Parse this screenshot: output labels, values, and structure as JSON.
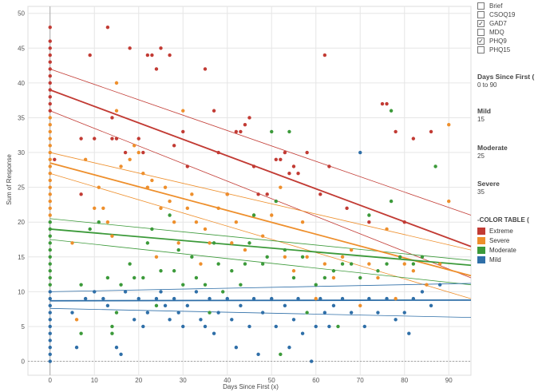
{
  "chart_data": {
    "type": "scatter",
    "title": "",
    "xlabel": "Days Since First (x)",
    "ylabel": "Sum of Response",
    "xlim": [
      -5,
      95
    ],
    "ylim": [
      -2,
      51
    ],
    "x_ticks": [
      0,
      10,
      20,
      30,
      40,
      50,
      60,
      70,
      80,
      90
    ],
    "y_ticks": [
      0,
      5,
      10,
      15,
      20,
      25,
      30,
      35,
      40,
      45,
      50
    ],
    "grid": true,
    "legend": "right",
    "series": [
      {
        "name": "Extreme",
        "color": "#c23b34",
        "trend": {
          "x0": 0,
          "y0": 39,
          "x1": 95,
          "y1": 16.5
        },
        "band_upper": {
          "x0": 0,
          "y0": 42,
          "x1": 95,
          "y1": 21
        },
        "band_lower": {
          "x0": 0,
          "y0": 36,
          "x1": 95,
          "y1": 12
        },
        "points": [
          [
            0,
            48
          ],
          [
            0,
            46
          ],
          [
            0,
            45
          ],
          [
            0,
            44
          ],
          [
            0,
            43
          ],
          [
            0,
            42
          ],
          [
            0,
            41
          ],
          [
            0,
            40
          ],
          [
            0,
            39
          ],
          [
            0,
            38
          ],
          [
            0,
            37
          ],
          [
            0,
            36
          ],
          [
            1,
            29
          ],
          [
            7,
            32
          ],
          [
            7,
            24
          ],
          [
            9,
            44
          ],
          [
            10,
            32
          ],
          [
            13,
            48
          ],
          [
            14,
            32
          ],
          [
            14,
            35
          ],
          [
            15,
            32
          ],
          [
            17,
            30
          ],
          [
            18,
            45
          ],
          [
            20,
            32
          ],
          [
            21,
            30
          ],
          [
            22,
            44
          ],
          [
            23,
            44
          ],
          [
            24,
            42
          ],
          [
            25,
            45
          ],
          [
            27,
            44
          ],
          [
            28,
            31
          ],
          [
            30,
            33
          ],
          [
            31,
            28
          ],
          [
            35,
            42
          ],
          [
            37,
            36
          ],
          [
            38,
            30
          ],
          [
            40,
            24
          ],
          [
            42,
            33
          ],
          [
            43,
            33
          ],
          [
            44,
            34
          ],
          [
            45,
            35
          ],
          [
            46,
            28
          ],
          [
            47,
            24
          ],
          [
            49,
            24
          ],
          [
            51,
            29
          ],
          [
            52,
            29
          ],
          [
            53,
            30
          ],
          [
            54,
            27
          ],
          [
            55,
            28
          ],
          [
            56,
            27
          ],
          [
            58,
            30
          ],
          [
            61,
            24
          ],
          [
            62,
            44
          ],
          [
            63,
            28
          ],
          [
            67,
            22
          ],
          [
            72,
            20
          ],
          [
            75,
            37
          ],
          [
            76,
            37
          ],
          [
            78,
            33
          ],
          [
            80,
            20
          ],
          [
            82,
            32
          ],
          [
            86,
            33
          ]
        ]
      },
      {
        "name": "Severe",
        "color": "#ee8f2c",
        "trend": {
          "x0": 0,
          "y0": 28.5,
          "x1": 95,
          "y1": 12.3
        },
        "band_upper": {
          "x0": 0,
          "y0": 30,
          "x1": 95,
          "y1": 16
        },
        "band_lower": {
          "x0": 0,
          "y0": 27,
          "x1": 95,
          "y1": 9
        },
        "points": [
          [
            0,
            35
          ],
          [
            0,
            34
          ],
          [
            0,
            33
          ],
          [
            0,
            32
          ],
          [
            0,
            31
          ],
          [
            0,
            30
          ],
          [
            0,
            29
          ],
          [
            0,
            28
          ],
          [
            0,
            27
          ],
          [
            0,
            26
          ],
          [
            0,
            25
          ],
          [
            0,
            24
          ],
          [
            0,
            23
          ],
          [
            0,
            22
          ],
          [
            0,
            21
          ],
          [
            5,
            17
          ],
          [
            6,
            6
          ],
          [
            8,
            29
          ],
          [
            10,
            22
          ],
          [
            11,
            25
          ],
          [
            12,
            22
          ],
          [
            13,
            20
          ],
          [
            14,
            18
          ],
          [
            15,
            36
          ],
          [
            15,
            40
          ],
          [
            16,
            28
          ],
          [
            18,
            29
          ],
          [
            19,
            31
          ],
          [
            20,
            30
          ],
          [
            21,
            27
          ],
          [
            22,
            25
          ],
          [
            23,
            26
          ],
          [
            24,
            15
          ],
          [
            25,
            22
          ],
          [
            26,
            25
          ],
          [
            27,
            23
          ],
          [
            28,
            20
          ],
          [
            29,
            17
          ],
          [
            30,
            36
          ],
          [
            31,
            22
          ],
          [
            32,
            24
          ],
          [
            33,
            20
          ],
          [
            34,
            14
          ],
          [
            35,
            19
          ],
          [
            36,
            17
          ],
          [
            38,
            22
          ],
          [
            40,
            24
          ],
          [
            41,
            17
          ],
          [
            42,
            20
          ],
          [
            44,
            16
          ],
          [
            46,
            21
          ],
          [
            48,
            18
          ],
          [
            50,
            21
          ],
          [
            52,
            25
          ],
          [
            53,
            15
          ],
          [
            55,
            13
          ],
          [
            57,
            20
          ],
          [
            58,
            15
          ],
          [
            60,
            9
          ],
          [
            62,
            14
          ],
          [
            64,
            12
          ],
          [
            66,
            15
          ],
          [
            68,
            16
          ],
          [
            70,
            8
          ],
          [
            72,
            14
          ],
          [
            74,
            12
          ],
          [
            76,
            19
          ],
          [
            78,
            9
          ],
          [
            80,
            14
          ],
          [
            82,
            13
          ],
          [
            85,
            11
          ],
          [
            88,
            14
          ],
          [
            90,
            23
          ],
          [
            90,
            34
          ]
        ]
      },
      {
        "name": "Moderate",
        "color": "#3c9a3a",
        "trend": {
          "x0": 0,
          "y0": 19,
          "x1": 95,
          "y1": 13.8
        },
        "band_upper": {
          "x0": 0,
          "y0": 20.5,
          "x1": 95,
          "y1": 14.5
        },
        "band_lower": {
          "x0": 0,
          "y0": 17.5,
          "x1": 95,
          "y1": 11
        },
        "points": [
          [
            0,
            20
          ],
          [
            0,
            19
          ],
          [
            0,
            18
          ],
          [
            0,
            17
          ],
          [
            0,
            16
          ],
          [
            0,
            15
          ],
          [
            0,
            14
          ],
          [
            0,
            13
          ],
          [
            0,
            12
          ],
          [
            0,
            11
          ],
          [
            7,
            4
          ],
          [
            7,
            11
          ],
          [
            9,
            19
          ],
          [
            11,
            20
          ],
          [
            13,
            12
          ],
          [
            14,
            5
          ],
          [
            14,
            4
          ],
          [
            15,
            7
          ],
          [
            16,
            11
          ],
          [
            18,
            14
          ],
          [
            19,
            12
          ],
          [
            21,
            12
          ],
          [
            22,
            17
          ],
          [
            23,
            19
          ],
          [
            24,
            8
          ],
          [
            25,
            13
          ],
          [
            27,
            21
          ],
          [
            28,
            13
          ],
          [
            29,
            16
          ],
          [
            30,
            11
          ],
          [
            32,
            15
          ],
          [
            33,
            12
          ],
          [
            35,
            11
          ],
          [
            36,
            7
          ],
          [
            37,
            17
          ],
          [
            38,
            14
          ],
          [
            39,
            10
          ],
          [
            41,
            13
          ],
          [
            43,
            11
          ],
          [
            44,
            14
          ],
          [
            45,
            17
          ],
          [
            46,
            21
          ],
          [
            48,
            14
          ],
          [
            49,
            15
          ],
          [
            50,
            33
          ],
          [
            51,
            23
          ],
          [
            52,
            1
          ],
          [
            53,
            16
          ],
          [
            54,
            33
          ],
          [
            55,
            12
          ],
          [
            57,
            15
          ],
          [
            58,
            7
          ],
          [
            60,
            11
          ],
          [
            62,
            12
          ],
          [
            64,
            13
          ],
          [
            65,
            5
          ],
          [
            66,
            14
          ],
          [
            68,
            14
          ],
          [
            70,
            12
          ],
          [
            72,
            21
          ],
          [
            74,
            13
          ],
          [
            76,
            14
          ],
          [
            77,
            23
          ],
          [
            77,
            36
          ],
          [
            79,
            15
          ],
          [
            82,
            14
          ],
          [
            84,
            15
          ],
          [
            87,
            28
          ]
        ]
      },
      {
        "name": "Mild",
        "color": "#2f6fa8",
        "trend": {
          "x0": 0,
          "y0": 8.7,
          "x1": 95,
          "y1": 8.8
        },
        "band_upper": {
          "x0": 0,
          "y0": 10,
          "x1": 95,
          "y1": 11.2
        },
        "band_lower": {
          "x0": 0,
          "y0": 7.6,
          "x1": 95,
          "y1": 6.3
        },
        "points": [
          [
            0,
            10
          ],
          [
            0,
            9
          ],
          [
            0,
            8
          ],
          [
            0,
            7
          ],
          [
            0,
            6
          ],
          [
            0,
            5
          ],
          [
            0,
            4
          ],
          [
            0,
            3
          ],
          [
            0,
            2
          ],
          [
            0,
            1
          ],
          [
            0,
            0
          ],
          [
            5,
            7
          ],
          [
            6,
            2
          ],
          [
            8,
            9
          ],
          [
            10,
            10
          ],
          [
            12,
            9
          ],
          [
            13,
            8
          ],
          [
            15,
            2
          ],
          [
            16,
            1
          ],
          [
            17,
            10
          ],
          [
            19,
            6
          ],
          [
            20,
            9
          ],
          [
            21,
            5
          ],
          [
            22,
            7
          ],
          [
            24,
            9
          ],
          [
            25,
            10
          ],
          [
            26,
            8
          ],
          [
            27,
            6
          ],
          [
            28,
            9
          ],
          [
            29,
            7
          ],
          [
            30,
            5
          ],
          [
            31,
            8
          ],
          [
            33,
            10
          ],
          [
            34,
            6
          ],
          [
            35,
            5
          ],
          [
            36,
            9
          ],
          [
            37,
            4
          ],
          [
            38,
            7
          ],
          [
            40,
            9
          ],
          [
            41,
            6
          ],
          [
            42,
            2
          ],
          [
            43,
            8
          ],
          [
            45,
            5
          ],
          [
            46,
            9
          ],
          [
            47,
            1
          ],
          [
            48,
            7
          ],
          [
            50,
            9
          ],
          [
            51,
            5
          ],
          [
            53,
            8
          ],
          [
            54,
            2
          ],
          [
            55,
            6
          ],
          [
            56,
            9
          ],
          [
            57,
            4
          ],
          [
            59,
            0
          ],
          [
            60,
            5
          ],
          [
            61,
            9
          ],
          [
            62,
            7
          ],
          [
            63,
            5
          ],
          [
            64,
            8
          ],
          [
            66,
            9
          ],
          [
            68,
            7
          ],
          [
            70,
            30
          ],
          [
            71,
            5
          ],
          [
            72,
            9
          ],
          [
            74,
            7
          ],
          [
            76,
            9
          ],
          [
            78,
            6
          ],
          [
            80,
            7
          ],
          [
            81,
            4
          ],
          [
            82,
            9
          ],
          [
            84,
            10
          ],
          [
            86,
            8
          ],
          [
            88,
            11
          ]
        ]
      }
    ]
  },
  "filters": {
    "items": [
      {
        "label": "Brief",
        "checked": false
      },
      {
        "label": "CSOQ19",
        "checked": false
      },
      {
        "label": "GAD7",
        "checked": true
      },
      {
        "label": "MDQ",
        "checked": false
      },
      {
        "label": "PHQ9",
        "checked": true
      },
      {
        "label": "PHQ15",
        "checked": false
      }
    ],
    "check_glyph": "✓"
  },
  "parameters": {
    "days": {
      "title": "Days Since First (",
      "value": "0 to 90"
    },
    "mild": {
      "title": "Mild",
      "value": "15"
    },
    "moderate": {
      "title": "Moderate",
      "value": "25"
    },
    "severe": {
      "title": "Severe",
      "value": "35"
    }
  },
  "legend": {
    "title": "-COLOR TABLE (",
    "items": [
      {
        "label": "Extreme",
        "color": "#c23b34"
      },
      {
        "label": "Severe",
        "color": "#ee8f2c"
      },
      {
        "label": "Moderate",
        "color": "#3c9a3a"
      },
      {
        "label": "Mild",
        "color": "#2f6fa8"
      }
    ]
  }
}
